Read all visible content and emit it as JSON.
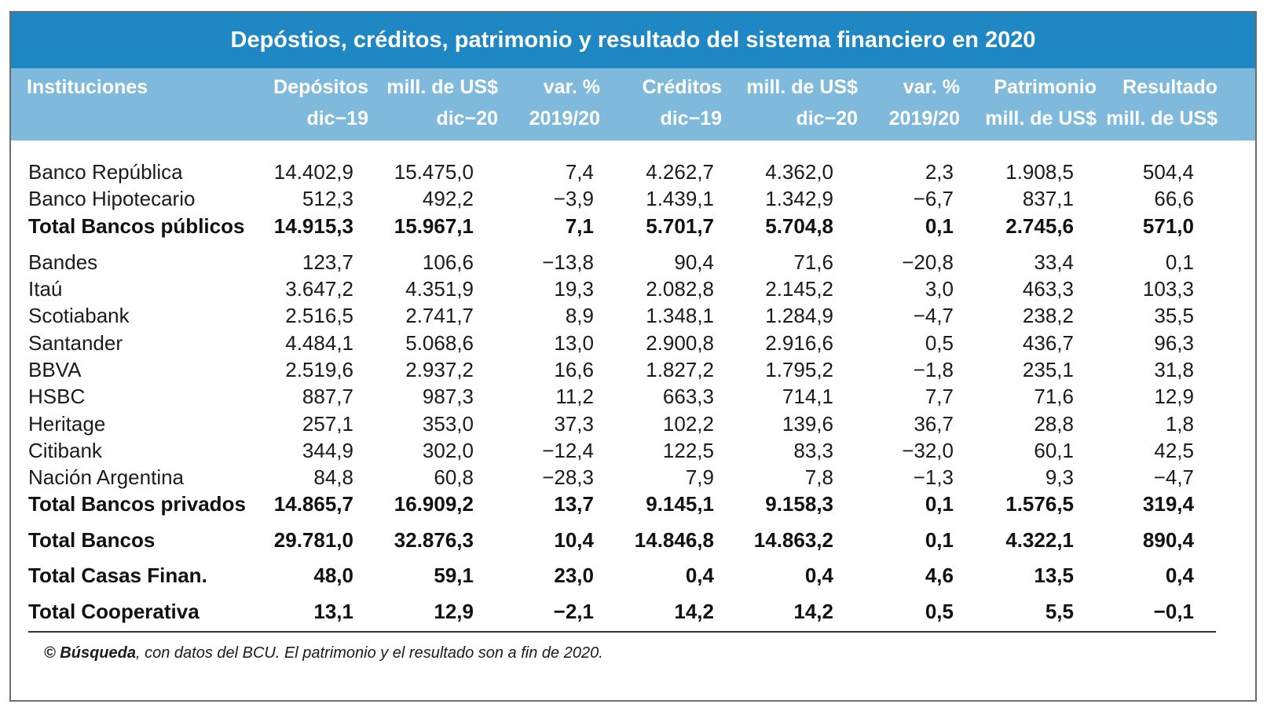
{
  "title": "Depóstios, créditos, patrimonio y resultado del sistema financiero en 2020",
  "headers": [
    {
      "line1": "Instituciones",
      "line2": ""
    },
    {
      "line1": "Depósitos",
      "line2": "dic−19"
    },
    {
      "line1": "mill. de US$",
      "line2": "dic−20"
    },
    {
      "line1": "var. %",
      "line2": "2019/20"
    },
    {
      "line1": "Créditos",
      "line2": "dic−19"
    },
    {
      "line1": "mill. de US$",
      "line2": "dic−20"
    },
    {
      "line1": "var. %",
      "line2": "2019/20"
    },
    {
      "line1": "Patrimonio",
      "line2": "mill. de US$"
    },
    {
      "line1": "Resultado",
      "line2": "mill. de US$"
    }
  ],
  "chart_data": {
    "type": "table",
    "title": "Depóstios, créditos, patrimonio y resultado del sistema financiero en 2020",
    "columns": [
      "Instituciones",
      "Depósitos dic−19",
      "mill. de US$ dic−20",
      "var. % 2019/20",
      "Créditos dic−19",
      "mill. de US$ dic−20",
      "var. % 2019/20",
      "Patrimonio mill. de US$",
      "Resultado mill. de US$"
    ],
    "rows": [
      {
        "name": "Banco República",
        "bold": false,
        "values": [
          "14.402,9",
          "15.475,0",
          "7,4",
          "4.262,7",
          "4.362,0",
          "2,3",
          "1.908,5",
          "504,4"
        ]
      },
      {
        "name": "Banco Hipotecario",
        "bold": false,
        "values": [
          "512,3",
          "492,2",
          "−3,9",
          "1.439,1",
          "1.342,9",
          "−6,7",
          "837,1",
          "66,6"
        ]
      },
      {
        "name": "Total Bancos públicos",
        "bold": true,
        "values": [
          "14.915,3",
          "15.967,1",
          "7,1",
          "5.701,7",
          "5.704,8",
          "0,1",
          "2.745,6",
          "571,0"
        ]
      },
      {
        "name": "Bandes",
        "bold": false,
        "values": [
          "123,7",
          "106,6",
          "−13,8",
          "90,4",
          "71,6",
          "−20,8",
          "33,4",
          "0,1"
        ]
      },
      {
        "name": "Itaú",
        "bold": false,
        "values": [
          "3.647,2",
          "4.351,9",
          "19,3",
          "2.082,8",
          "2.145,2",
          "3,0",
          "463,3",
          "103,3"
        ]
      },
      {
        "name": "Scotiabank",
        "bold": false,
        "values": [
          "2.516,5",
          "2.741,7",
          "8,9",
          "1.348,1",
          "1.284,9",
          "−4,7",
          "238,2",
          "35,5"
        ]
      },
      {
        "name": "Santander",
        "bold": false,
        "values": [
          "4.484,1",
          "5.068,6",
          "13,0",
          "2.900,8",
          "2.916,6",
          "0,5",
          "436,7",
          "96,3"
        ]
      },
      {
        "name": "BBVA",
        "bold": false,
        "values": [
          "2.519,6",
          "2.937,2",
          "16,6",
          "1.827,2",
          "1.795,2",
          "−1,8",
          "235,1",
          "31,8"
        ]
      },
      {
        "name": "HSBC",
        "bold": false,
        "values": [
          "887,7",
          "987,3",
          "11,2",
          "663,3",
          "714,1",
          "7,7",
          "71,6",
          "12,9"
        ]
      },
      {
        "name": "Heritage",
        "bold": false,
        "values": [
          "257,1",
          "353,0",
          "37,3",
          "102,2",
          "139,6",
          "36,7",
          "28,8",
          "1,8"
        ]
      },
      {
        "name": "Citibank",
        "bold": false,
        "values": [
          "344,9",
          "302,0",
          "−12,4",
          "122,5",
          "83,3",
          "−32,0",
          "60,1",
          "42,5"
        ]
      },
      {
        "name": "Nación Argentina",
        "bold": false,
        "values": [
          "84,8",
          "60,8",
          "−28,3",
          "7,9",
          "7,8",
          "−1,3",
          "9,3",
          "−4,7"
        ]
      },
      {
        "name": "Total Bancos privados",
        "bold": true,
        "values": [
          "14.865,7",
          "16.909,2",
          "13,7",
          "9.145,1",
          "9.158,3",
          "0,1",
          "1.576,5",
          "319,4"
        ]
      },
      {
        "name": "Total Bancos",
        "bold": true,
        "values": [
          "29.781,0",
          "32.876,3",
          "10,4",
          "14.846,8",
          "14.863,2",
          "0,1",
          "4.322,1",
          "890,4"
        ]
      },
      {
        "name": "Total Casas Finan.",
        "bold": true,
        "values": [
          "48,0",
          "59,1",
          "23,0",
          "0,4",
          "0,4",
          "4,6",
          "13,5",
          "0,4"
        ]
      },
      {
        "name": "Total Cooperativa",
        "bold": true,
        "values": [
          "13,1",
          "12,9",
          "−2,1",
          "14,2",
          "14,2",
          "0,5",
          "5,5",
          "−0,1"
        ]
      }
    ]
  },
  "footer": {
    "source_brand": "© Búsqueda",
    "source_rest": ", con datos del BCU. El patrimonio y el resultado son a fin de 2020."
  },
  "colors": {
    "title_bg": "#1f87c3",
    "header_bg": "#7fbadd",
    "text": "#1b1b1b"
  }
}
